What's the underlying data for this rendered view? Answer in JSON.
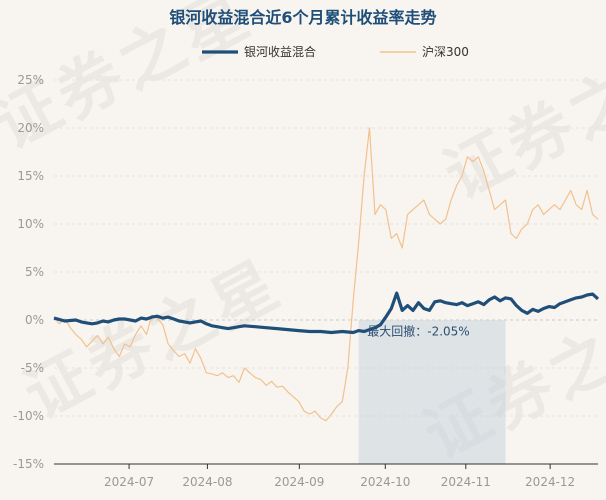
{
  "chart_data": {
    "type": "line",
    "title": "银河收益混合近6个月累计收益率走势",
    "xlabel": "",
    "ylabel": "",
    "legend_position": "top-center",
    "grid": {
      "horizontal": true,
      "vertical": false
    },
    "x_ticks": [
      "2024-07",
      "2024-08",
      "2024-09",
      "2024-10",
      "2024-11",
      "2024-12"
    ],
    "y_ticks": [
      "25%",
      "20%",
      "15%",
      "10%",
      "5%",
      "0%",
      "-5%",
      "-10%",
      "-15%"
    ],
    "ylim": [
      -15,
      25
    ],
    "xlim": [
      0,
      100
    ],
    "series": [
      {
        "name": "银河收益混合",
        "color": "#1f4e79",
        "x": [
          0,
          2,
          4,
          5,
          6,
          7,
          8,
          9,
          10,
          11,
          12,
          13,
          14,
          15,
          16,
          17,
          18,
          19,
          20,
          21,
          22,
          23,
          24,
          25,
          26,
          27,
          28,
          29,
          30,
          31,
          32,
          33,
          34,
          35,
          37,
          39,
          41,
          43,
          45,
          47,
          49,
          51,
          53,
          55,
          56,
          57,
          58,
          59,
          60,
          61,
          62,
          63,
          64,
          65,
          66,
          67,
          68,
          69,
          70,
          71,
          72,
          73,
          74,
          75,
          76,
          77,
          78,
          79,
          80,
          81,
          82,
          83,
          84,
          85,
          86,
          87,
          88,
          89,
          90,
          91,
          92,
          93,
          94,
          95,
          96,
          97,
          98,
          99,
          100
        ],
        "y": [
          0.2,
          -0.1,
          0.0,
          -0.2,
          -0.3,
          -0.4,
          -0.3,
          -0.1,
          -0.2,
          0.0,
          0.1,
          0.1,
          0.0,
          -0.1,
          0.2,
          0.1,
          0.3,
          0.4,
          0.2,
          0.3,
          0.1,
          -0.1,
          -0.2,
          -0.3,
          -0.2,
          -0.1,
          -0.4,
          -0.6,
          -0.7,
          -0.8,
          -0.9,
          -0.8,
          -0.7,
          -0.6,
          -0.7,
          -0.8,
          -0.9,
          -1.0,
          -1.1,
          -1.2,
          -1.2,
          -1.3,
          -1.2,
          -1.3,
          -1.1,
          -1.2,
          -1.0,
          -0.8,
          -0.5,
          0.3,
          1.2,
          2.8,
          1.0,
          1.5,
          1.0,
          1.8,
          1.2,
          1.0,
          1.9,
          2.0,
          1.8,
          1.7,
          1.6,
          1.8,
          1.5,
          1.7,
          1.9,
          1.6,
          2.1,
          2.4,
          2.0,
          2.3,
          2.2,
          1.5,
          1.0,
          0.7,
          1.1,
          0.9,
          1.2,
          1.4,
          1.3,
          1.7,
          1.9,
          2.1,
          2.3,
          2.4,
          2.6,
          2.7,
          2.2
        ]
      },
      {
        "name": "沪深300",
        "color": "#f2c18d",
        "x": [
          0,
          1,
          2,
          3,
          4,
          5,
          6,
          7,
          8,
          9,
          10,
          11,
          12,
          13,
          14,
          15,
          16,
          17,
          18,
          19,
          20,
          21,
          22,
          23,
          24,
          25,
          26,
          27,
          28,
          29,
          30,
          31,
          32,
          33,
          34,
          35,
          36,
          37,
          38,
          39,
          40,
          41,
          42,
          43,
          44,
          45,
          46,
          47,
          48,
          49,
          50,
          51,
          52,
          53,
          54,
          55,
          56,
          57,
          58,
          59,
          60,
          61,
          62,
          63,
          64,
          65,
          66,
          67,
          68,
          69,
          70,
          71,
          72,
          73,
          74,
          75,
          76,
          77,
          78,
          79,
          80,
          81,
          82,
          83,
          84,
          85,
          86,
          87,
          88,
          89,
          90,
          91,
          92,
          93,
          94,
          95,
          96,
          97,
          98,
          99,
          100
        ],
        "y": [
          0.3,
          -0.4,
          0.1,
          -0.8,
          -1.5,
          -2.0,
          -2.8,
          -2.2,
          -1.6,
          -2.5,
          -1.8,
          -3.0,
          -3.8,
          -2.5,
          -2.8,
          -1.5,
          -0.6,
          -1.5,
          0.5,
          0.2,
          -0.5,
          -2.5,
          -3.2,
          -3.8,
          -3.5,
          -4.5,
          -3.0,
          -4.0,
          -5.5,
          -5.6,
          -5.8,
          -5.5,
          -6.0,
          -5.8,
          -6.5,
          -5.0,
          -5.5,
          -6.0,
          -6.2,
          -6.8,
          -6.4,
          -7.0,
          -6.9,
          -7.5,
          -8.0,
          -8.5,
          -9.5,
          -9.8,
          -9.5,
          -10.2,
          -10.5,
          -9.8,
          -9.0,
          -8.5,
          -5.0,
          2.0,
          8.0,
          15.0,
          20.0,
          11.0,
          12.0,
          11.5,
          8.5,
          9.0,
          7.5,
          11.0,
          11.5,
          12.0,
          12.5,
          11.0,
          10.5,
          10.0,
          10.5,
          12.5,
          14.0,
          15.0,
          17.0,
          16.5,
          17.0,
          15.5,
          13.5,
          11.5,
          12.0,
          12.5,
          9.0,
          8.5,
          9.5,
          10.0,
          11.5,
          12.0,
          11.0,
          11.5,
          12.0,
          11.5,
          12.5,
          13.5,
          12.0,
          11.5,
          13.5,
          11.0,
          10.5
        ]
      }
    ],
    "shaded_region": {
      "x_start": 56,
      "x_end": 83,
      "y_min": -15,
      "y_max": 0
    },
    "annotation": {
      "text": "最大回撤：-2.05%",
      "x": 67,
      "y": -1.2
    },
    "watermark": "证券之星"
  }
}
